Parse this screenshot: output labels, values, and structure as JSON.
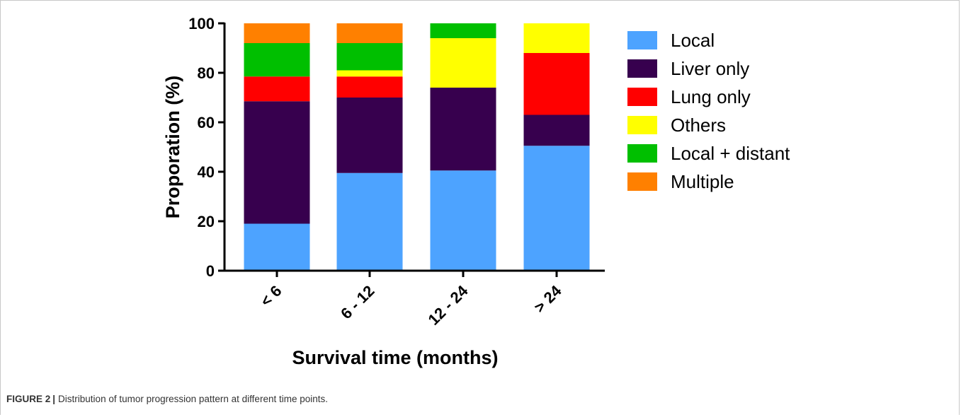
{
  "caption": {
    "label": "FIGURE 2",
    "separator": "|",
    "text": "Distribution of tumor progression pattern at different time points."
  },
  "chart_data": {
    "type": "bar",
    "stacked": true,
    "title": "",
    "xlabel": "Survival time (months)",
    "ylabel": "Proporation (%)",
    "ylim": [
      0,
      100
    ],
    "yticks": [
      0,
      20,
      40,
      60,
      80,
      100
    ],
    "categories": [
      "< 6",
      "6 - 12",
      "12 - 24",
      "> 24"
    ],
    "legend_position": "right",
    "grid": false,
    "series": [
      {
        "name": "Local",
        "color": "#4da3ff",
        "values": [
          19,
          39.5,
          40.5,
          50.5
        ]
      },
      {
        "name": "Liver only",
        "color": "#37004e",
        "values": [
          49.5,
          30.5,
          33.5,
          12.5
        ]
      },
      {
        "name": "Lung only",
        "color": "#ff0000",
        "values": [
          10,
          8.5,
          0,
          25
        ]
      },
      {
        "name": "Others",
        "color": "#ffff00",
        "values": [
          0,
          2.5,
          20,
          12
        ]
      },
      {
        "name": "Local + distant",
        "color": "#00bf00",
        "values": [
          13.5,
          11,
          6,
          0
        ]
      },
      {
        "name": "Multiple",
        "color": "#ff8000",
        "values": [
          8,
          8,
          0,
          0
        ]
      }
    ]
  }
}
